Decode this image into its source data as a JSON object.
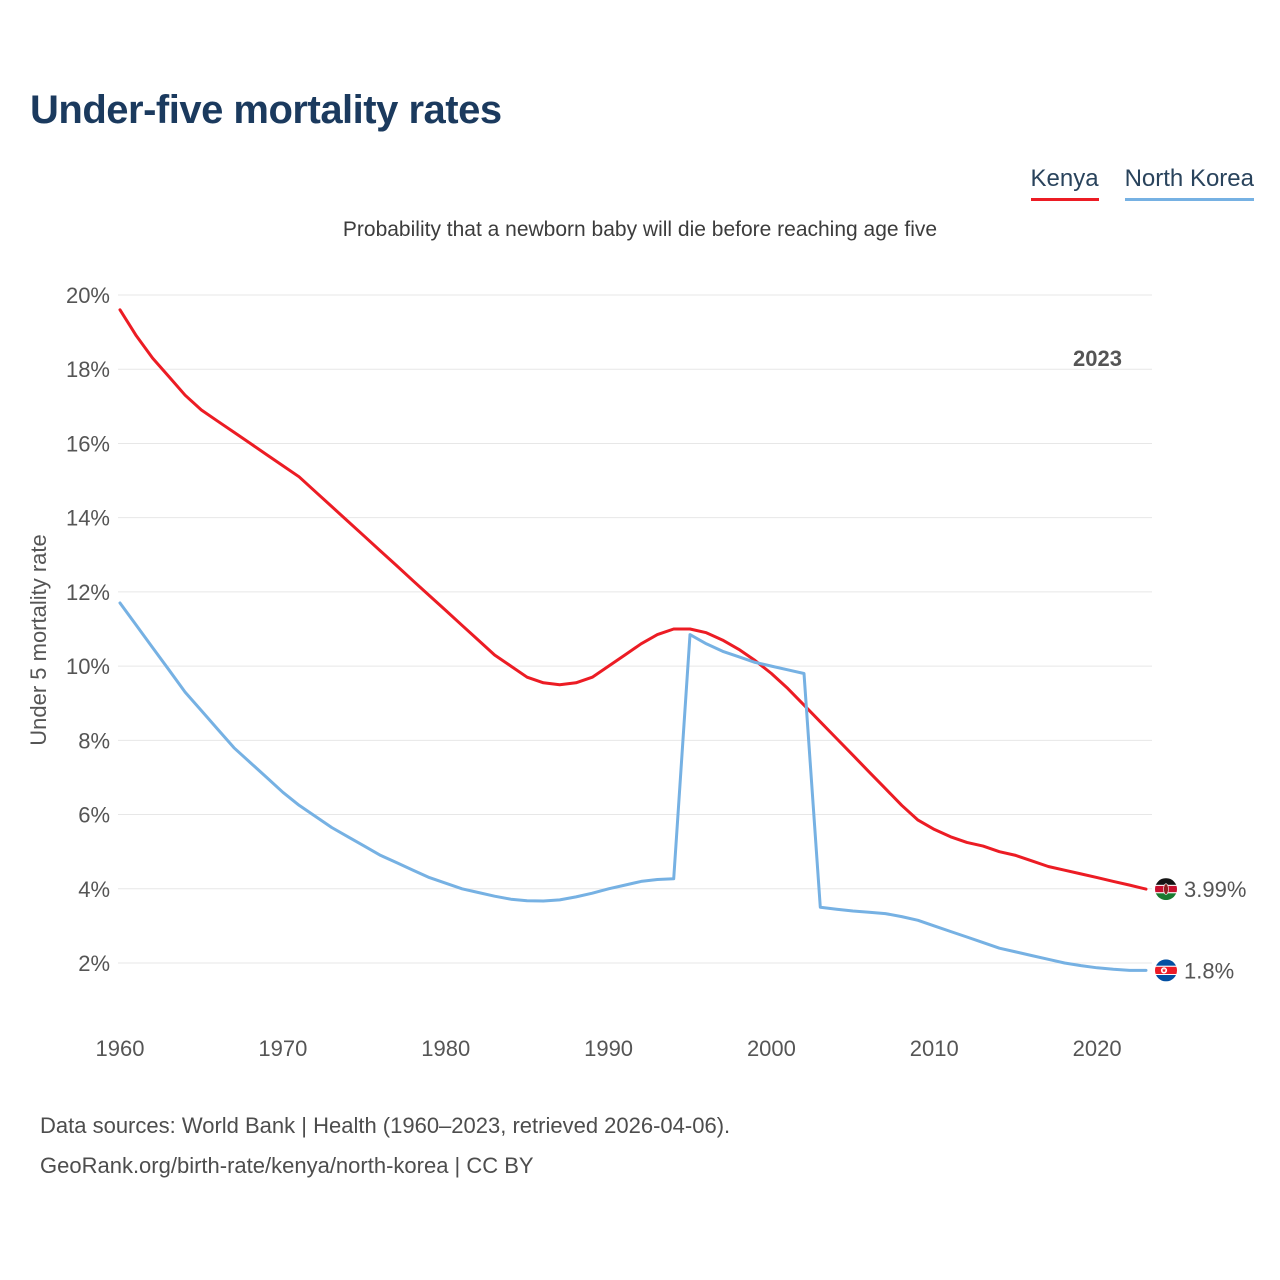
{
  "page": {
    "title": "Under-five mortality rates",
    "subtitle": "Probability that a newborn baby will die before reaching age five",
    "watermark": "2023",
    "footer_line1": "Data sources: World Bank | Health (1960–2023, retrieved 2026-04-06).",
    "footer_line2": "GeoRank.org/birth-rate/kenya/north-korea | CC BY"
  },
  "legend_text_color": "#29435c",
  "legend": [
    {
      "label": "Kenya",
      "color": "#ec1c24"
    },
    {
      "label": "North Korea",
      "color": "#76b1e3"
    }
  ],
  "chart_data": {
    "type": "line",
    "title": "Under-five mortality rates",
    "subtitle": "Probability that a newborn baby will die before reaching age five",
    "xlabel": "",
    "ylabel": "Under 5 mortality rate",
    "xlim": [
      1960,
      2023
    ],
    "ylim": [
      0,
      20
    ],
    "grid": "horizontal",
    "legend_position": "top-right",
    "watermark": "2023",
    "yticks": [
      2,
      4,
      6,
      8,
      10,
      12,
      14,
      16,
      18,
      20
    ],
    "ytick_suffix": "%",
    "xticks": [
      1960,
      1970,
      1980,
      1990,
      2000,
      2010,
      2020
    ],
    "x": [
      1960,
      1961,
      1962,
      1963,
      1964,
      1965,
      1966,
      1967,
      1968,
      1969,
      1970,
      1971,
      1972,
      1973,
      1974,
      1975,
      1976,
      1977,
      1978,
      1979,
      1980,
      1981,
      1982,
      1983,
      1984,
      1985,
      1986,
      1987,
      1988,
      1989,
      1990,
      1991,
      1992,
      1993,
      1994,
      1995,
      1996,
      1997,
      1998,
      1999,
      2000,
      2001,
      2002,
      2003,
      2004,
      2005,
      2006,
      2007,
      2008,
      2009,
      2010,
      2011,
      2012,
      2013,
      2014,
      2015,
      2016,
      2017,
      2018,
      2019,
      2020,
      2021,
      2022,
      2023
    ],
    "series": [
      {
        "name": "Kenya",
        "color": "#ec1c24",
        "label_color": "#e02026",
        "flag_icon": "kenya-flag-icon",
        "end_label": "3.99%",
        "values": [
          19.6,
          18.9,
          18.3,
          17.8,
          17.3,
          16.9,
          16.6,
          16.3,
          16.0,
          15.7,
          15.4,
          15.1,
          14.7,
          14.3,
          13.9,
          13.5,
          13.1,
          12.7,
          12.3,
          11.9,
          11.5,
          11.1,
          10.7,
          10.3,
          10.0,
          9.7,
          9.55,
          9.5,
          9.55,
          9.7,
          10.0,
          10.3,
          10.6,
          10.85,
          11.0,
          11.0,
          10.9,
          10.7,
          10.45,
          10.15,
          9.8,
          9.4,
          8.95,
          8.5,
          8.05,
          7.6,
          7.15,
          6.7,
          6.25,
          5.85,
          5.6,
          5.4,
          5.25,
          5.15,
          5.0,
          4.9,
          4.75,
          4.6,
          4.5,
          4.4,
          4.3,
          4.2,
          4.1,
          3.99
        ]
      },
      {
        "name": "North Korea",
        "color": "#76b1e3",
        "label_color": "#4a9cdb",
        "flag_icon": "north-korea-flag-icon",
        "end_label": "1.8%",
        "values": [
          11.7,
          11.1,
          10.5,
          9.9,
          9.3,
          8.8,
          8.3,
          7.8,
          7.4,
          7.0,
          6.6,
          6.25,
          5.95,
          5.65,
          5.4,
          5.15,
          4.9,
          4.7,
          4.5,
          4.3,
          4.15,
          4.0,
          3.9,
          3.8,
          3.72,
          3.68,
          3.67,
          3.7,
          3.78,
          3.88,
          4.0,
          4.1,
          4.2,
          4.25,
          4.27,
          10.85,
          10.6,
          10.4,
          10.25,
          10.1,
          10.0,
          9.9,
          9.8,
          3.5,
          3.45,
          3.4,
          3.37,
          3.33,
          3.25,
          3.15,
          3.0,
          2.85,
          2.7,
          2.55,
          2.4,
          2.3,
          2.2,
          2.1,
          2.0,
          1.93,
          1.87,
          1.83,
          1.8,
          1.8
        ]
      }
    ]
  }
}
